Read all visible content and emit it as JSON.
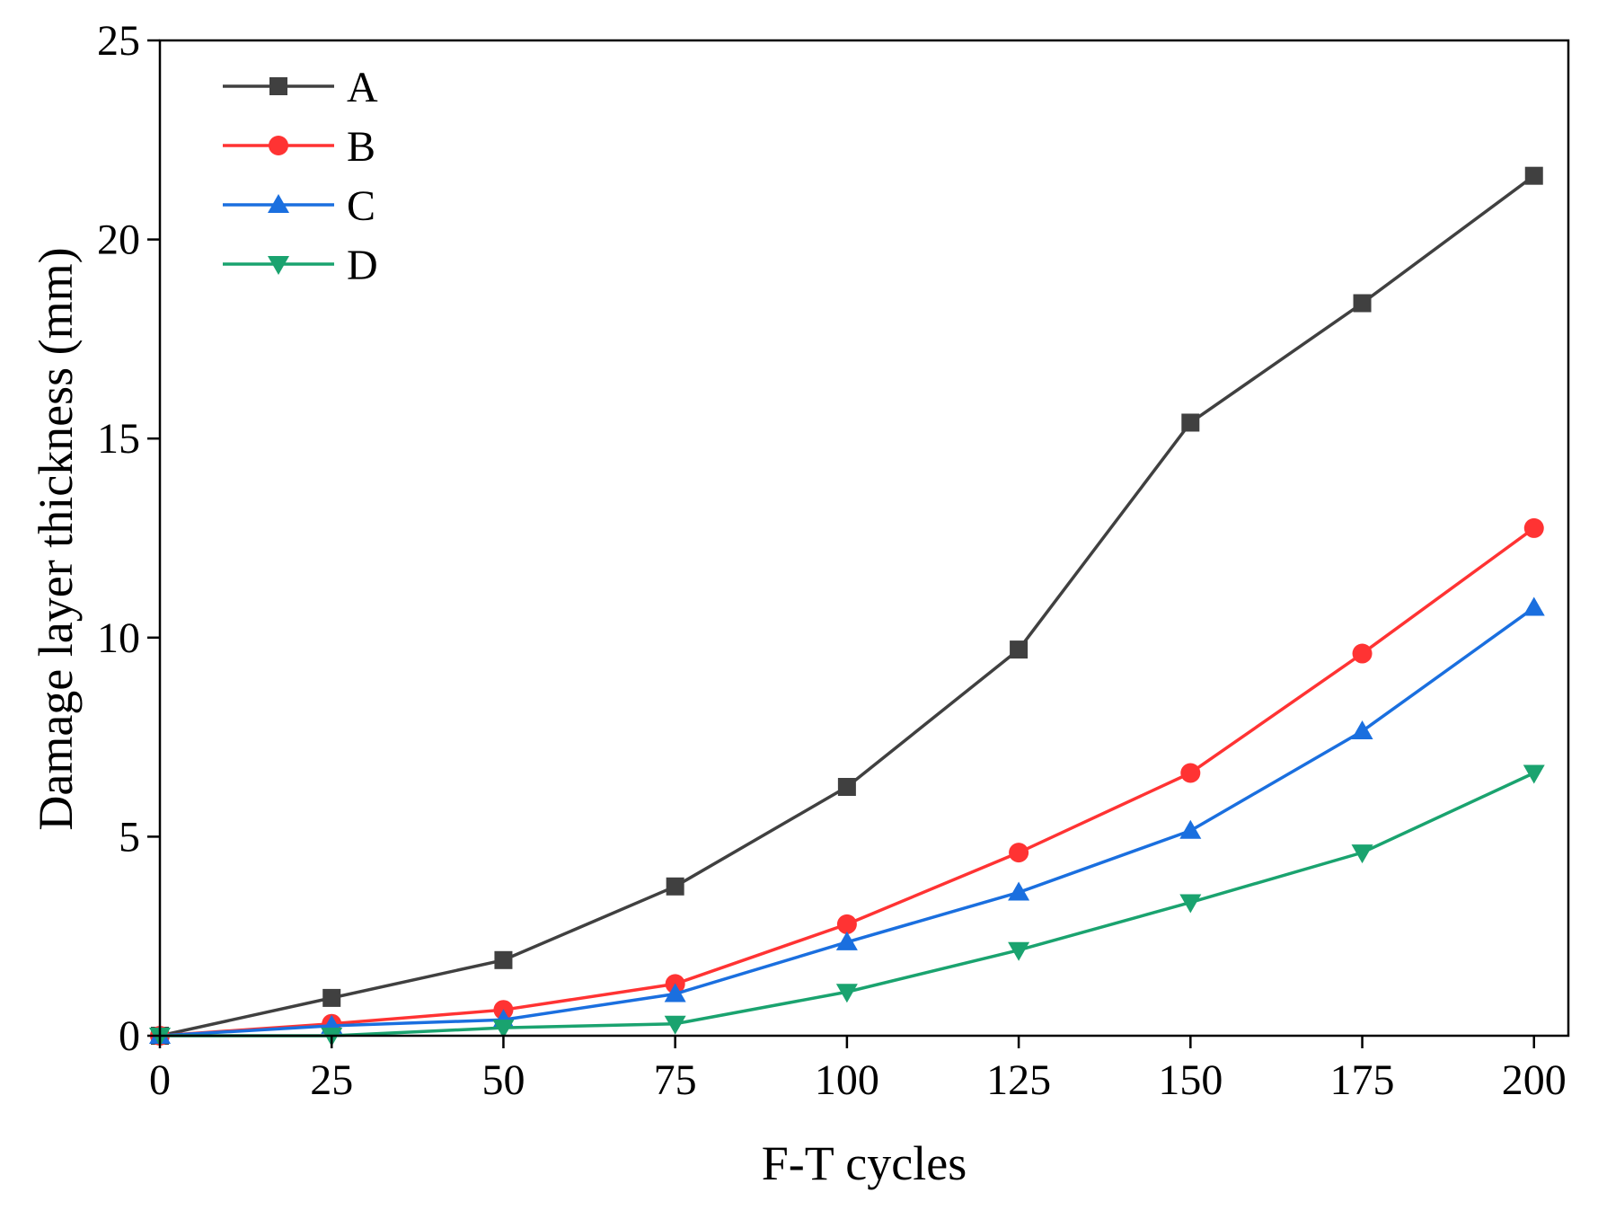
{
  "chart_data": {
    "type": "line",
    "title": "",
    "xlabel": "F-T cycles",
    "ylabel": "Damage layer thickness (mm)",
    "xlim": [
      0,
      205
    ],
    "ylim": [
      0,
      25
    ],
    "x_ticks": [
      0,
      25,
      50,
      75,
      100,
      125,
      150,
      175,
      200
    ],
    "y_ticks": [
      0,
      5,
      10,
      15,
      20,
      25
    ],
    "grid": false,
    "legend_position": "top-left",
    "x": [
      0,
      25,
      50,
      75,
      100,
      125,
      150,
      175,
      200
    ],
    "series": [
      {
        "name": "A",
        "color": "#404040",
        "marker": "square",
        "values": [
          0,
          0.95,
          1.9,
          3.75,
          6.25,
          9.7,
          15.4,
          18.4,
          21.6
        ]
      },
      {
        "name": "B",
        "color": "#ff3333",
        "marker": "circle",
        "values": [
          0,
          0.3,
          0.65,
          1.3,
          2.8,
          4.6,
          6.6,
          9.6,
          12.75
        ]
      },
      {
        "name": "C",
        "color": "#1a6fdf",
        "marker": "triangle-up",
        "values": [
          0,
          0.25,
          0.4,
          1.05,
          2.35,
          3.6,
          5.15,
          7.65,
          10.75
        ]
      },
      {
        "name": "D",
        "color": "#1aa36f",
        "marker": "triangle-down",
        "values": [
          0,
          0.0,
          0.2,
          0.3,
          1.1,
          2.15,
          3.35,
          4.6,
          6.6
        ]
      }
    ]
  }
}
